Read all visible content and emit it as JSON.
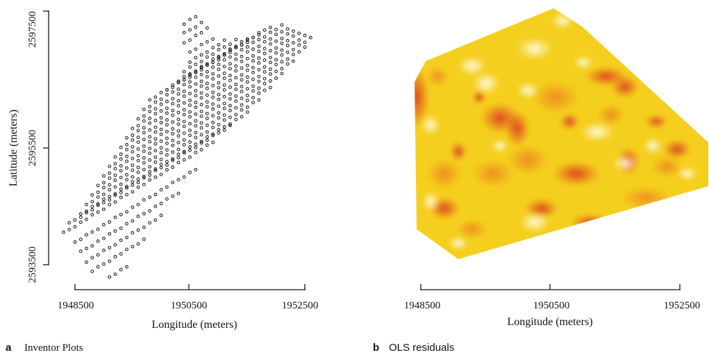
{
  "chart_data": [
    {
      "type": "scatter",
      "panel_letter": "a",
      "panel_title": "Inventor Plots",
      "xlabel": "Longitude (meters)",
      "ylabel": "Latitude (meters)",
      "xticks": [
        {
          "value": 1948500,
          "label": "1948500"
        },
        {
          "value": 1950500,
          "label": "1950500"
        },
        {
          "value": 1952500,
          "label": "1952500"
        }
      ],
      "yticks": [
        {
          "value": 2593500,
          "label": "2593500"
        },
        {
          "value": 2595500,
          "label": "2595500"
        },
        {
          "value": 2597500,
          "label": "2597500"
        }
      ],
      "xlim": [
        1948330,
        1952700
      ],
      "ylim": [
        2593500,
        2597500
      ],
      "grid": false,
      "colors": {
        "marker": "#222222",
        "axis": "#111111"
      },
      "grid_points": {
        "description_rows": [
          {
            "y0": 2593300,
            "x_start": 1949100,
            "x_end": 1949400
          },
          {
            "y0": 2593400,
            "x_start": 1948800,
            "x_end": 1949700
          },
          {
            "y0": 2593550,
            "x_start": 1948700,
            "x_end": 1950000
          },
          {
            "y0": 2593700,
            "x_start": 1948600,
            "x_end": 1950300
          },
          {
            "y0": 2593850,
            "x_start": 1948500,
            "x_end": 1950600
          },
          {
            "y0": 2594000,
            "x_start": 1948300,
            "x_end": 1950900
          },
          {
            "y0": 2594150,
            "x_start": 1948400,
            "x_end": 1951200
          },
          {
            "y0": 2594300,
            "x_start": 1948600,
            "x_end": 1951500
          },
          {
            "y0": 2594450,
            "x_start": 1948700,
            "x_end": 1951700
          },
          {
            "y0": 2594600,
            "x_start": 1948800,
            "x_end": 1951900
          },
          {
            "y0": 2594750,
            "x_start": 1948900,
            "x_end": 1952100
          },
          {
            "y0": 2594900,
            "x_start": 1949000,
            "x_end": 1952300
          },
          {
            "y0": 2595050,
            "x_start": 1949100,
            "x_end": 1952500
          },
          {
            "y0": 2595200,
            "x_start": 1949200,
            "x_end": 1952600
          },
          {
            "y0": 2595350,
            "x_start": 1949300,
            "x_end": 1952500
          },
          {
            "y0": 2595500,
            "x_start": 1949400,
            "x_end": 1952400
          },
          {
            "y0": 2595650,
            "x_start": 1949500,
            "x_end": 1952300
          },
          {
            "y0": 2595800,
            "x_start": 1949600,
            "x_end": 1952200
          },
          {
            "y0": 2595950,
            "x_start": 1949700,
            "x_end": 1952100
          },
          {
            "y0": 2596100,
            "x_start": 1949800,
            "x_end": 1951900
          },
          {
            "y0": 2596250,
            "x_start": 1950100,
            "x_end": 1951700
          },
          {
            "y0": 2596400,
            "x_start": 1950300,
            "x_end": 1951500
          },
          {
            "y0": 2596550,
            "x_start": 1950400,
            "x_end": 1951300
          },
          {
            "y0": 2596700,
            "x_start": 1950500,
            "x_end": 1951100
          },
          {
            "y0": 2596850,
            "x_start": 1950500,
            "x_end": 1950900
          },
          {
            "y0": 2597000,
            "x_start": 1950400,
            "x_end": 1950800
          },
          {
            "y0": 2597150,
            "x_start": 1950400,
            "x_end": 1950700
          },
          {
            "y0": 2597300,
            "x_start": 1950400,
            "x_end": 1950600
          }
        ]
      }
    },
    {
      "type": "heatmap",
      "panel_letter": "b",
      "panel_title": "OLS residuals",
      "xlabel": "Longitude (meters)",
      "xticks": [
        {
          "value": 1948500,
          "label": "1948500"
        },
        {
          "value": 1950500,
          "label": "1950500"
        },
        {
          "value": 1952500,
          "label": "1952500"
        }
      ],
      "xlim": [
        1948500,
        1952500
      ],
      "colors": {
        "low": "#fff7e0",
        "mid": "#f5d21c",
        "high": "#d9331e"
      },
      "grid": false,
      "legend": "none"
    }
  ]
}
